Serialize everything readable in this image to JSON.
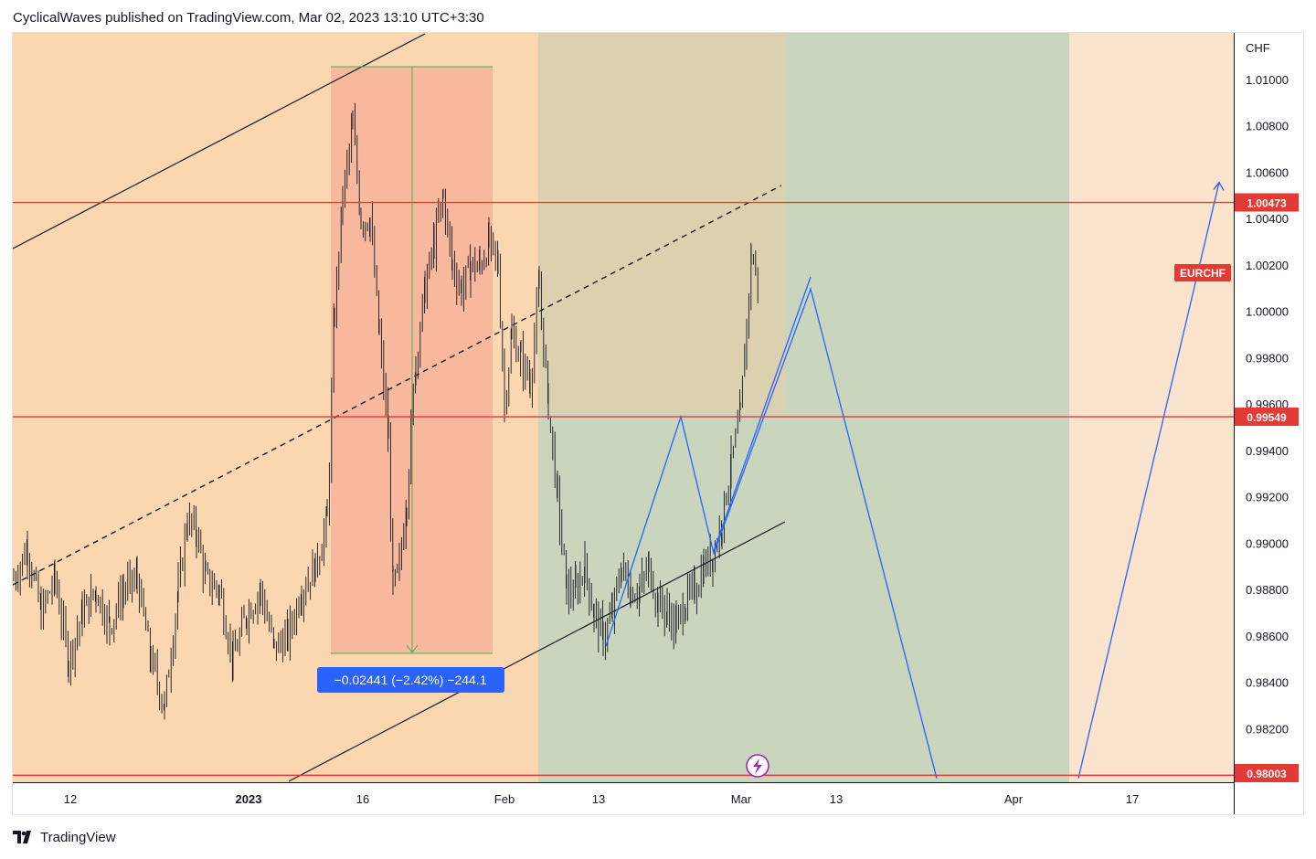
{
  "header": {
    "published_text": "CyclicalWaves published on TradingView.com, Mar 02, 2023 13:10 UTC+3:30"
  },
  "footer": {
    "brand": "TradingView",
    "logo_icon": "tradingview-logo-icon"
  },
  "chart_data": {
    "type": "candlestick",
    "symbol": "EURCHF",
    "currency_label": "CHF",
    "y_axis_ticks": [
      "1.01000",
      "1.00800",
      "1.00600",
      "1.00400",
      "1.00200",
      "1.00000",
      "0.99800",
      "0.99600",
      "0.99400",
      "0.99200",
      "0.99000",
      "0.98800",
      "0.98600",
      "0.98400",
      "0.98200"
    ],
    "ylim": [
      0.97973,
      1.01204
    ],
    "x_axis_ticks": [
      "12",
      "2023",
      "16",
      "Feb",
      "13",
      "Mar",
      "13",
      "Apr",
      "17"
    ],
    "x_axis_tick_positions": [
      77,
      272,
      397,
      552,
      655,
      811,
      915,
      1109,
      1239
    ],
    "price_levels": [
      {
        "value": "1.00473",
        "color": "#e53935"
      },
      {
        "value": "0.99549",
        "color": "#e53935"
      },
      {
        "value": "0.98003",
        "color": "#e53935"
      }
    ],
    "symbol_badge_color": "#e53935",
    "measure_label": "−0.02441 (−2.42%) −244.1",
    "measure_color": "#2962ff",
    "projection_path": [
      [
        663,
        0.9856
      ],
      [
        745,
        0.99549
      ],
      [
        781,
        0.9896
      ],
      [
        887,
        1.001
      ],
      [
        1025,
        0.9799
      ]
    ],
    "projection_tail": [
      [
        1180,
        0.9799
      ],
      [
        1334,
        1.0056
      ]
    ],
    "projection_color": "#2962ff",
    "candle_anchors": [
      [
        15,
        0.9885
      ],
      [
        30,
        0.9898
      ],
      [
        45,
        0.987
      ],
      [
        60,
        0.9885
      ],
      [
        75,
        0.985
      ],
      [
        90,
        0.987
      ],
      [
        105,
        0.988
      ],
      [
        120,
        0.9865
      ],
      [
        135,
        0.988
      ],
      [
        150,
        0.9885
      ],
      [
        165,
        0.985
      ],
      [
        180,
        0.983
      ],
      [
        195,
        0.988
      ],
      [
        205,
        0.991
      ],
      [
        215,
        0.9905
      ],
      [
        225,
        0.9885
      ],
      [
        240,
        0.988
      ],
      [
        255,
        0.985
      ],
      [
        270,
        0.987
      ],
      [
        285,
        0.988
      ],
      [
        300,
        0.9855
      ],
      [
        315,
        0.986
      ],
      [
        330,
        0.988
      ],
      [
        345,
        0.989
      ],
      [
        358,
        0.991
      ],
      [
        366,
        1.0
      ],
      [
        375,
        1.005
      ],
      [
        386,
        1.008
      ],
      [
        395,
        1.004
      ],
      [
        405,
        1.004
      ],
      [
        415,
        0.999
      ],
      [
        425,
        0.9945
      ],
      [
        430,
        0.988
      ],
      [
        437,
        0.989
      ],
      [
        445,
        0.992
      ],
      [
        455,
        0.998
      ],
      [
        465,
        1.001
      ],
      [
        475,
        1.003
      ],
      [
        485,
        1.005
      ],
      [
        495,
        1.002
      ],
      [
        505,
        1.001
      ],
      [
        515,
        1.002
      ],
      [
        525,
        1.002
      ],
      [
        535,
        1.003
      ],
      [
        545,
        1.002
      ],
      [
        552,
        0.996
      ],
      [
        560,
        0.999
      ],
      [
        570,
        0.998
      ],
      [
        580,
        0.997
      ],
      [
        590,
        1.001
      ],
      [
        600,
        0.996
      ],
      [
        610,
        0.992
      ],
      [
        620,
        0.988
      ],
      [
        630,
        0.988
      ],
      [
        640,
        0.989
      ],
      [
        650,
        0.987
      ],
      [
        660,
        0.986
      ],
      [
        670,
        0.987
      ],
      [
        680,
        0.989
      ],
      [
        690,
        0.988
      ],
      [
        700,
        0.988
      ],
      [
        710,
        0.989
      ],
      [
        720,
        0.9875
      ],
      [
        730,
        0.987
      ],
      [
        740,
        0.9865
      ],
      [
        750,
        0.9875
      ],
      [
        760,
        0.988
      ],
      [
        770,
        0.989
      ],
      [
        780,
        0.9895
      ],
      [
        790,
        0.991
      ],
      [
        800,
        0.9935
      ],
      [
        810,
        0.9955
      ],
      [
        817,
        0.9995
      ],
      [
        822,
        1.0025
      ],
      [
        830,
        1.0012
      ]
    ]
  }
}
